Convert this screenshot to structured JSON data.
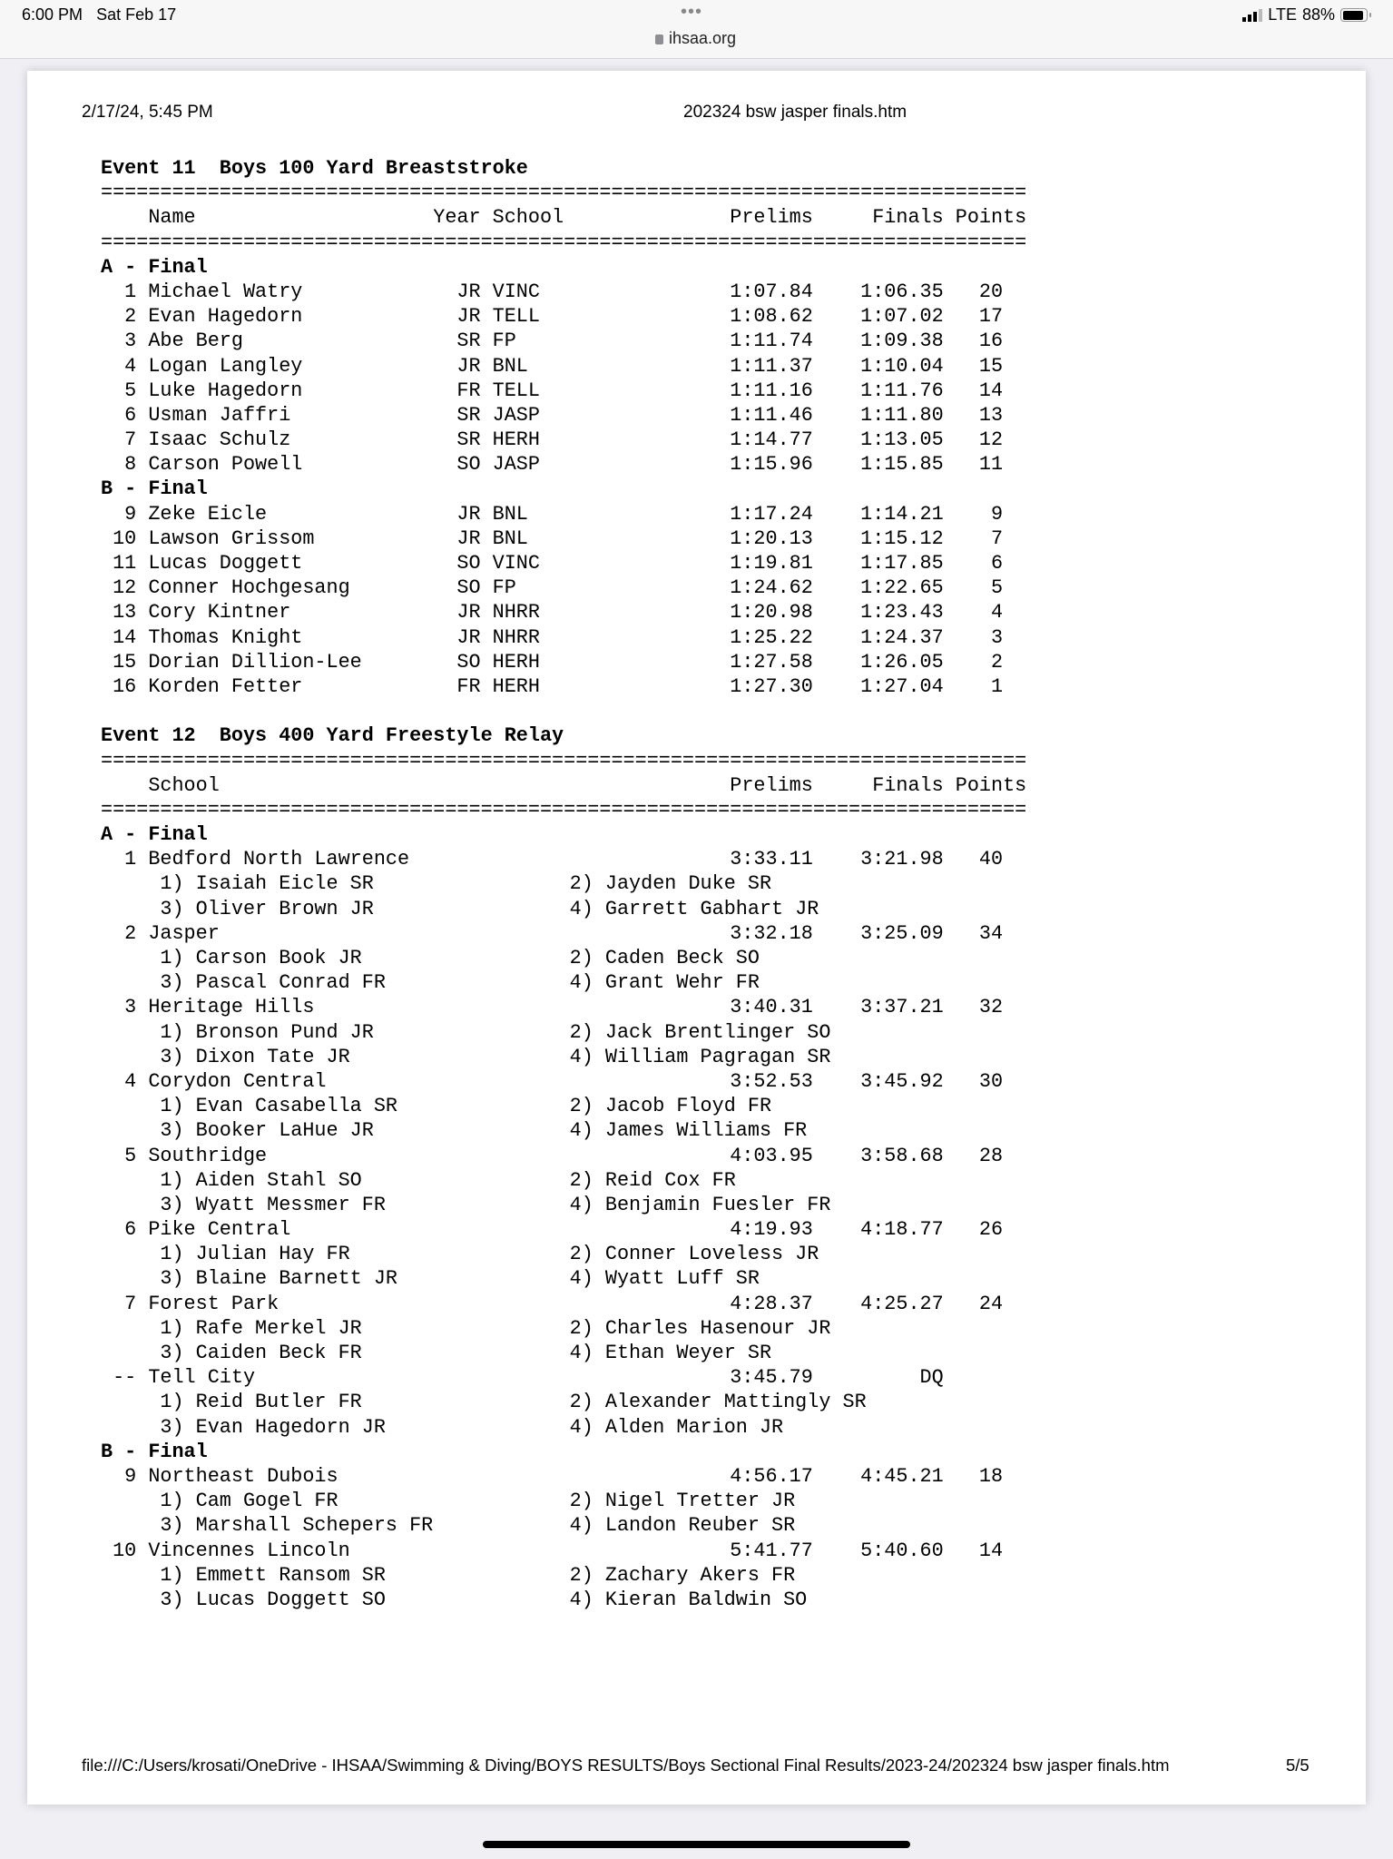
{
  "status_bar": {
    "time": "6:00 PM",
    "date": "Sat Feb 17",
    "url": "ihsaa.org",
    "network": "LTE",
    "battery": "88%",
    "battery_level": 0.88
  },
  "page_header": {
    "printed": "2/17/24, 5:45 PM",
    "title": "202324 bsw jasper finals.htm"
  },
  "page_footer": {
    "path": "file:///C:/Users/krosati/OneDrive - IHSAA/Swimming & Diving/BOYS RESULTS/Boys Sectional Final Results/2023-24/202324 bsw jasper finals.htm",
    "page": "5/5"
  },
  "separator": "==============================================================================",
  "events": [
    {
      "title": "Event 11  Boys 100 Yard Breaststroke",
      "columns": {
        "name": "Name",
        "year": "Year",
        "school": "School",
        "prelims": "Prelims",
        "finals": "Finals",
        "points": "Points"
      },
      "heats": [
        {
          "label": "A - Final",
          "results": [
            {
              "place": "1",
              "name": "Michael Watry",
              "year": "JR",
              "school": "VINC",
              "prelims": "1:07.84",
              "finals": "1:06.35",
              "points": "20"
            },
            {
              "place": "2",
              "name": "Evan Hagedorn",
              "year": "JR",
              "school": "TELL",
              "prelims": "1:08.62",
              "finals": "1:07.02",
              "points": "17"
            },
            {
              "place": "3",
              "name": "Abe Berg",
              "year": "SR",
              "school": "FP",
              "prelims": "1:11.74",
              "finals": "1:09.38",
              "points": "16"
            },
            {
              "place": "4",
              "name": "Logan Langley",
              "year": "JR",
              "school": "BNL",
              "prelims": "1:11.37",
              "finals": "1:10.04",
              "points": "15"
            },
            {
              "place": "5",
              "name": "Luke Hagedorn",
              "year": "FR",
              "school": "TELL",
              "prelims": "1:11.16",
              "finals": "1:11.76",
              "points": "14"
            },
            {
              "place": "6",
              "name": "Usman Jaffri",
              "year": "SR",
              "school": "JASP",
              "prelims": "1:11.46",
              "finals": "1:11.80",
              "points": "13"
            },
            {
              "place": "7",
              "name": "Isaac Schulz",
              "year": "SR",
              "school": "HERH",
              "prelims": "1:14.77",
              "finals": "1:13.05",
              "points": "12"
            },
            {
              "place": "8",
              "name": "Carson Powell",
              "year": "SO",
              "school": "JASP",
              "prelims": "1:15.96",
              "finals": "1:15.85",
              "points": "11"
            }
          ]
        },
        {
          "label": "B - Final",
          "results": [
            {
              "place": "9",
              "name": "Zeke Eicle",
              "year": "JR",
              "school": "BNL",
              "prelims": "1:17.24",
              "finals": "1:14.21",
              "points": "9"
            },
            {
              "place": "10",
              "name": "Lawson Grissom",
              "year": "JR",
              "school": "BNL",
              "prelims": "1:20.13",
              "finals": "1:15.12",
              "points": "7"
            },
            {
              "place": "11",
              "name": "Lucas Doggett",
              "year": "SO",
              "school": "VINC",
              "prelims": "1:19.81",
              "finals": "1:17.85",
              "points": "6"
            },
            {
              "place": "12",
              "name": "Conner Hochgesang",
              "year": "SO",
              "school": "FP",
              "prelims": "1:24.62",
              "finals": "1:22.65",
              "points": "5"
            },
            {
              "place": "13",
              "name": "Cory Kintner",
              "year": "JR",
              "school": "NHRR",
              "prelims": "1:20.98",
              "finals": "1:23.43",
              "points": "4"
            },
            {
              "place": "14",
              "name": "Thomas Knight",
              "year": "JR",
              "school": "NHRR",
              "prelims": "1:25.22",
              "finals": "1:24.37",
              "points": "3"
            },
            {
              "place": "15",
              "name": "Dorian Dillion-Lee",
              "year": "SO",
              "school": "HERH",
              "prelims": "1:27.58",
              "finals": "1:26.05",
              "points": "2"
            },
            {
              "place": "16",
              "name": "Korden Fetter",
              "year": "FR",
              "school": "HERH",
              "prelims": "1:27.30",
              "finals": "1:27.04",
              "points": "1"
            }
          ]
        }
      ]
    },
    {
      "title": "Event 12  Boys 400 Yard Freestyle Relay",
      "relay": true,
      "columns": {
        "school": "School",
        "prelims": "Prelims",
        "finals": "Finals",
        "points": "Points"
      },
      "heats": [
        {
          "label": "A - Final",
          "results": [
            {
              "place": "1",
              "school": "Bedford North Lawrence",
              "prelims": "3:33.11",
              "finals": "3:21.98",
              "points": "40",
              "swimmers": [
                "1) Isaiah Eicle SR",
                "2) Jayden Duke SR",
                "3) Oliver Brown JR",
                "4) Garrett Gabhart JR"
              ]
            },
            {
              "place": "2",
              "school": "Jasper",
              "prelims": "3:32.18",
              "finals": "3:25.09",
              "points": "34",
              "swimmers": [
                "1) Carson Book JR",
                "2) Caden Beck SO",
                "3) Pascal Conrad FR",
                "4) Grant Wehr FR"
              ]
            },
            {
              "place": "3",
              "school": "Heritage Hills",
              "prelims": "3:40.31",
              "finals": "3:37.21",
              "points": "32",
              "swimmers": [
                "1) Bronson Pund JR",
                "2) Jack Brentlinger SO",
                "3) Dixon Tate JR",
                "4) William Pagragan SR"
              ]
            },
            {
              "place": "4",
              "school": "Corydon Central",
              "prelims": "3:52.53",
              "finals": "3:45.92",
              "points": "30",
              "swimmers": [
                "1) Evan Casabella SR",
                "2) Jacob Floyd FR",
                "3) Booker LaHue JR",
                "4) James Williams FR"
              ]
            },
            {
              "place": "5",
              "school": "Southridge",
              "prelims": "4:03.95",
              "finals": "3:58.68",
              "points": "28",
              "swimmers": [
                "1) Aiden Stahl SO",
                "2) Reid Cox FR",
                "3) Wyatt Messmer FR",
                "4) Benjamin Fuesler FR"
              ]
            },
            {
              "place": "6",
              "school": "Pike Central",
              "prelims": "4:19.93",
              "finals": "4:18.77",
              "points": "26",
              "swimmers": [
                "1) Julian Hay FR",
                "2) Conner Loveless JR",
                "3) Blaine Barnett JR",
                "4) Wyatt Luff SR"
              ]
            },
            {
              "place": "7",
              "school": "Forest Park",
              "prelims": "4:28.37",
              "finals": "4:25.27",
              "points": "24",
              "swimmers": [
                "1) Rafe Merkel JR",
                "2) Charles Hasenour JR",
                "3) Caiden Beck FR",
                "4) Ethan Weyer SR"
              ]
            },
            {
              "place": "--",
              "school": "Tell City",
              "prelims": "3:45.79",
              "finals": "DQ",
              "points": "",
              "swimmers": [
                "1) Reid Butler FR",
                "2) Alexander Mattingly SR",
                "3) Evan Hagedorn JR",
                "4) Alden Marion JR"
              ]
            }
          ]
        },
        {
          "label": "B - Final",
          "results": [
            {
              "place": "9",
              "school": "Northeast Dubois",
              "prelims": "4:56.17",
              "finals": "4:45.21",
              "points": "18",
              "swimmers": [
                "1) Cam Gogel FR",
                "2) Nigel Tretter JR",
                "3) Marshall Schepers FR",
                "4) Landon Reuber SR"
              ]
            },
            {
              "place": "10",
              "school": "Vincennes Lincoln",
              "prelims": "5:41.77",
              "finals": "5:40.60",
              "points": "14",
              "swimmers": [
                "1) Emmett Ransom SR",
                "2) Zachary Akers FR",
                "3) Lucas Doggett SO",
                "4) Kieran Baldwin SO"
              ]
            }
          ]
        }
      ]
    }
  ]
}
